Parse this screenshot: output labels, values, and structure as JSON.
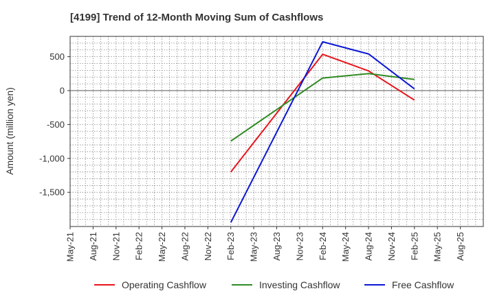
{
  "chart_data": {
    "type": "line",
    "title": "[4199]  Trend of 12-Month Moving Sum of Cashflows",
    "xlabel": "",
    "ylabel": "Amount (million yen)",
    "x_ticks": [
      "May-21",
      "Aug-21",
      "Nov-21",
      "Feb-22",
      "May-22",
      "Aug-22",
      "Nov-22",
      "Feb-23",
      "May-23",
      "Aug-23",
      "Nov-23",
      "Feb-24",
      "May-24",
      "Aug-24",
      "Nov-24",
      "Feb-25",
      "May-25",
      "Aug-25"
    ],
    "y_ticks": [
      "500",
      "0",
      "-500",
      "-1,000",
      "-1,500"
    ],
    "ylim": [
      -2000,
      800
    ],
    "grid": true,
    "legend_position": "bottom",
    "x": [
      "Feb-23",
      "Feb-24",
      "Aug-24",
      "Feb-25"
    ],
    "series": [
      {
        "name": "Operating Cashflow",
        "color": "#e8141b",
        "values": [
          -1200,
          535,
          290,
          -140
        ]
      },
      {
        "name": "Investing Cashflow",
        "color": "#2e8b22",
        "values": [
          -745,
          185,
          250,
          165
        ]
      },
      {
        "name": "Free Cashflow",
        "color": "#0b16d4",
        "values": [
          -1945,
          720,
          540,
          25
        ]
      }
    ]
  }
}
